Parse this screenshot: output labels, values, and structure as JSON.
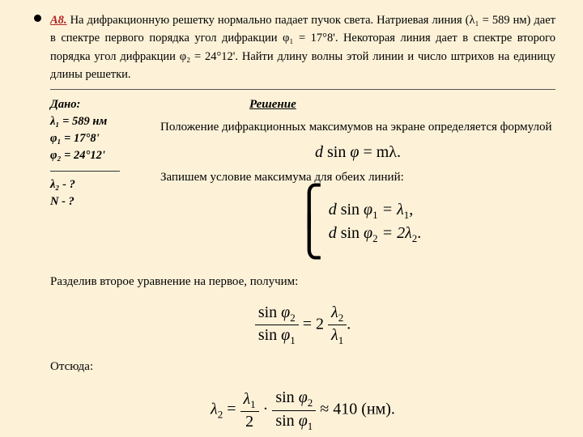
{
  "colors": {
    "page_bg": "#fdf2d8",
    "accent": "#b22222",
    "rule": "#555"
  },
  "problem": {
    "id": "А8.",
    "text": "На дифракционную решетку нормально падает пучок света. Натриевая линия (λ₁ = 589 нм) дает в спектре первого порядка угол дифракции φ₁ = 17°8'. Некоторая линия дает в спектре второго порядка угол дифракции φ₂ = 24°12'. Найти длину волны  этой линии и число штрихов  на единицу длины решетки."
  },
  "given": {
    "title": "Дано:",
    "lines": [
      "λ₁ = 589 нм",
      "φ₁ = 17°8'",
      "φ₂ = 24°12'"
    ],
    "find": [
      "λ₂ - ?",
      "N - ?"
    ]
  },
  "solution": {
    "title": "Решение",
    "p1": "Положение дифракционных максимумов на экране определяется формулой",
    "f1_left": "d",
    "f1_sin": "sin",
    "f1_phi": "φ",
    "f1_eq": " = mλ.",
    "p2": "Запишем условие максимума для обеих линий:",
    "sys1": "d sin φ₁ = λ₁,",
    "sys2": "d sin φ₂ = 2λ₂.",
    "p3": "Разделив второе уравнение на первое, получим:",
    "frac_num1": "sin φ₂",
    "frac_den1": "sin φ₁",
    "mid_eq": " = 2",
    "frac_num2": "λ₂",
    "frac_den2": "λ₁",
    "dot": ".",
    "p4": "Отсюда:",
    "res_lhs": "λ₂ = ",
    "frac3_num": "λ₁",
    "frac3_den": "2",
    "cdot": " · ",
    "approx": " ≈ 410",
    "unit": " (нм)."
  }
}
